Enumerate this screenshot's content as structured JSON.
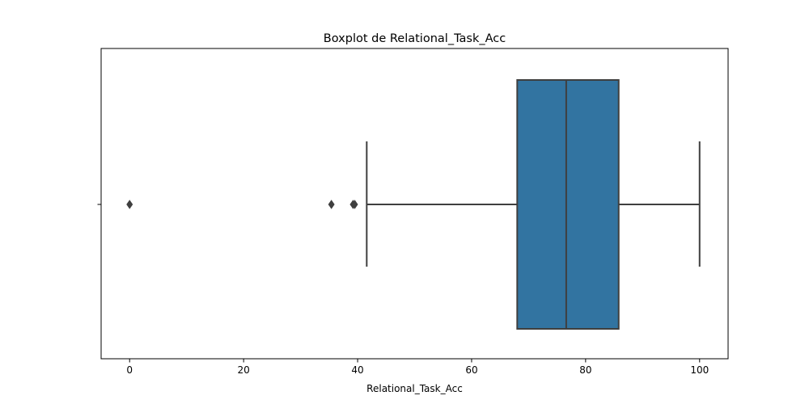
{
  "chart_data": {
    "type": "boxplot",
    "title": "Boxplot de Relational_Task_Acc",
    "xlabel": "Relational_Task_Acc",
    "ylabel": "",
    "xlim": [
      -5,
      105
    ],
    "x_ticks": [
      0,
      20,
      40,
      60,
      80,
      100
    ],
    "x_tick_labels": [
      "0",
      "20",
      "40",
      "60",
      "80",
      "100"
    ],
    "grid": false,
    "orientation": "horizontal",
    "box": {
      "whisker_low": 41.6,
      "q1": 68,
      "median": 76.6,
      "q3": 85.8,
      "whisker_high": 100
    },
    "outliers": [
      0,
      35.4,
      39.2,
      39.5
    ],
    "colors": {
      "box_fill": "#3274a1",
      "line": "#3f3f3f",
      "axes": "#000000"
    }
  }
}
